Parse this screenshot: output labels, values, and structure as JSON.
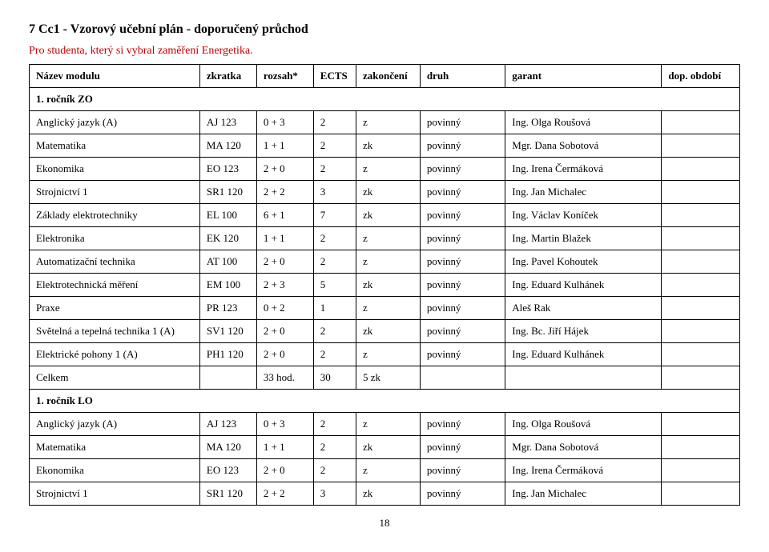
{
  "heading": "7  Cc1 - Vzorový učební plán - doporučený průchod",
  "subtext": "Pro studenta, který si vybral zaměření Energetika.",
  "header": {
    "c0": "Název modulu",
    "c1": "zkratka",
    "c2": "rozsah*",
    "c3": "ECTS",
    "c4": "zakončení",
    "c5": "druh",
    "c6": "garant",
    "c7": "dop. období"
  },
  "section1": "1. ročník ZO",
  "section2": "1. ročník LO",
  "rows1": [
    {
      "c0": "Anglický jazyk  (A)",
      "c1": "AJ 123",
      "c2": "0 + 3",
      "c3": "2",
      "c4": "z",
      "c5": "povinný",
      "c6": "Ing. Olga Roušová",
      "c7": ""
    },
    {
      "c0": "Matematika",
      "c1": "MA 120",
      "c2": "1 + 1",
      "c3": "2",
      "c4": "zk",
      "c5": "povinný",
      "c6": "Mgr. Dana Sobotová",
      "c7": ""
    },
    {
      "c0": "Ekonomika",
      "c1": "EO 123",
      "c2": "2 + 0",
      "c3": "2",
      "c4": "z",
      "c5": "povinný",
      "c6": "Ing. Irena Čermáková",
      "c7": ""
    },
    {
      "c0": "Strojnictví 1",
      "c1": "SR1 120",
      "c2": "2 + 2",
      "c3": "3",
      "c4": "zk",
      "c5": "povinný",
      "c6": "Ing. Jan Michalec",
      "c7": ""
    },
    {
      "c0": "Základy elektrotechniky",
      "c1": "EL 100",
      "c2": "6 + 1",
      "c3": "7",
      "c4": "zk",
      "c5": "povinný",
      "c6": "Ing. Václav Koníček",
      "c7": ""
    },
    {
      "c0": "Elektronika",
      "c1": "EK 120",
      "c2": "1 + 1",
      "c3": "2",
      "c4": "z",
      "c5": "povinný",
      "c6": "Ing. Martin Blažek",
      "c7": ""
    },
    {
      "c0": "Automatizační technika",
      "c1": "AT 100",
      "c2": "2 + 0",
      "c3": "2",
      "c4": "z",
      "c5": "povinný",
      "c6": "Ing. Pavel Kohoutek",
      "c7": ""
    },
    {
      "c0": "Elektrotechnická měření",
      "c1": "EM 100",
      "c2": "2 + 3",
      "c3": "5",
      "c4": "zk",
      "c5": "povinný",
      "c6": "Ing. Eduard Kulhánek",
      "c7": ""
    },
    {
      "c0": "Praxe",
      "c1": "PR 123",
      "c2": "0 + 2",
      "c3": "1",
      "c4": "z",
      "c5": "povinný",
      "c6": "Aleš Rak",
      "c7": ""
    },
    {
      "c0": "Světelná a tepelná technika 1  (A)",
      "c1": "SV1 120",
      "c2": "2 + 0",
      "c3": "2",
      "c4": "zk",
      "c5": "povinný",
      "c6": "Ing. Bc. Jiří Hájek",
      "c7": ""
    },
    {
      "c0": "Elektrické pohony 1  (A)",
      "c1": "PH1 120",
      "c2": "2 + 0",
      "c3": "2",
      "c4": "z",
      "c5": "povinný",
      "c6": "Ing. Eduard Kulhánek",
      "c7": ""
    }
  ],
  "totalRow": {
    "c0": "Celkem",
    "c1": "",
    "c2": "33 hod.",
    "c3": "30",
    "c4": "5 zk",
    "c5": "",
    "c6": "",
    "c7": ""
  },
  "rows2": [
    {
      "c0": "Anglický jazyk  (A)",
      "c1": "AJ 123",
      "c2": "0 + 3",
      "c3": "2",
      "c4": "z",
      "c5": "povinný",
      "c6": "Ing. Olga Roušová",
      "c7": ""
    },
    {
      "c0": "Matematika",
      "c1": "MA 120",
      "c2": "1 + 1",
      "c3": "2",
      "c4": "zk",
      "c5": "povinný",
      "c6": "Mgr. Dana Sobotová",
      "c7": ""
    },
    {
      "c0": "Ekonomika",
      "c1": "EO 123",
      "c2": "2 + 0",
      "c3": "2",
      "c4": "z",
      "c5": "povinný",
      "c6": "Ing. Irena Čermáková",
      "c7": ""
    },
    {
      "c0": "Strojnictví 1",
      "c1": "SR1 120",
      "c2": "2 + 2",
      "c3": "3",
      "c4": "zk",
      "c5": "povinný",
      "c6": "Ing. Jan Michalec",
      "c7": ""
    }
  ],
  "pagenum": "18",
  "colwidths": {
    "c0": "24%",
    "c1": "8%",
    "c2": "8%",
    "c3": "6%",
    "c4": "9%",
    "c5": "12%",
    "c6": "22%",
    "c7": "11%"
  }
}
